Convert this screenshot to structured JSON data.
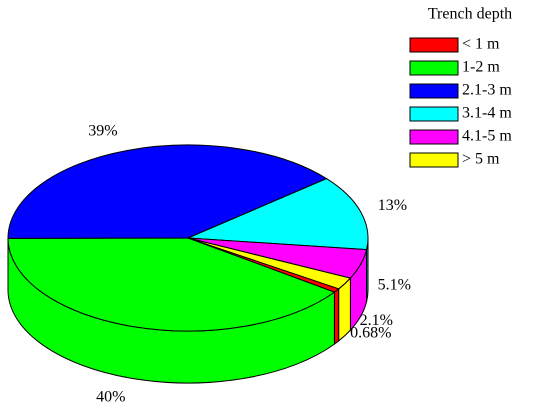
{
  "chart_data": {
    "type": "pie",
    "legend_title": "Trench depth",
    "categories": [
      "< 1 m",
      "1-2 m",
      "2.1-3 m",
      "3.1-4 m",
      "4.1-5 m",
      "> 5 m"
    ],
    "values": [
      0.68,
      40,
      39,
      13,
      5.1,
      2.1
    ],
    "value_labels": [
      "0.68%",
      "40%",
      "39%",
      "13%",
      "5.1%",
      "2.1%"
    ],
    "colors": [
      "#ff0000",
      "#00ff00",
      "#0000ff",
      "#00ffff",
      "#ff00ff",
      "#ffff00"
    ],
    "legend": "upper right"
  }
}
